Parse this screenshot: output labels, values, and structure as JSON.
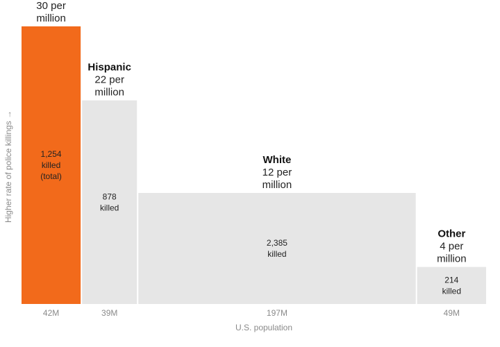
{
  "chart_data": {
    "type": "mekko",
    "title": "",
    "xlabel": "U.S. population",
    "ylabel": "Higher rate of police killings →",
    "rate_unit": "per million",
    "ylim": [
      0,
      30
    ],
    "series": [
      {
        "name": "",
        "rate": 30,
        "rate_lines": [
          "30 per",
          "million"
        ],
        "killed_lines": [
          "1,254",
          "killed",
          "(total)"
        ],
        "killed": 1254,
        "population_millions": 42,
        "population_label": "42M",
        "color": "#F26A1B"
      },
      {
        "name": "Hispanic",
        "rate": 22,
        "rate_lines": [
          "22 per",
          "million"
        ],
        "killed_lines": [
          "878",
          "killed"
        ],
        "killed": 878,
        "population_millions": 39,
        "population_label": "39M",
        "color": "#E6E6E6"
      },
      {
        "name": "White",
        "rate": 12,
        "rate_lines": [
          "12 per",
          "million"
        ],
        "killed_lines": [
          "2,385",
          "killed"
        ],
        "killed": 2385,
        "population_millions": 197,
        "population_label": "197M",
        "color": "#E6E6E6"
      },
      {
        "name": "Other",
        "rate": 4,
        "rate_lines": [
          "4 per",
          "million"
        ],
        "killed_lines": [
          "214",
          "killed"
        ],
        "killed": 214,
        "population_millions": 49,
        "population_label": "49M",
        "color": "#E6E6E6"
      }
    ]
  }
}
